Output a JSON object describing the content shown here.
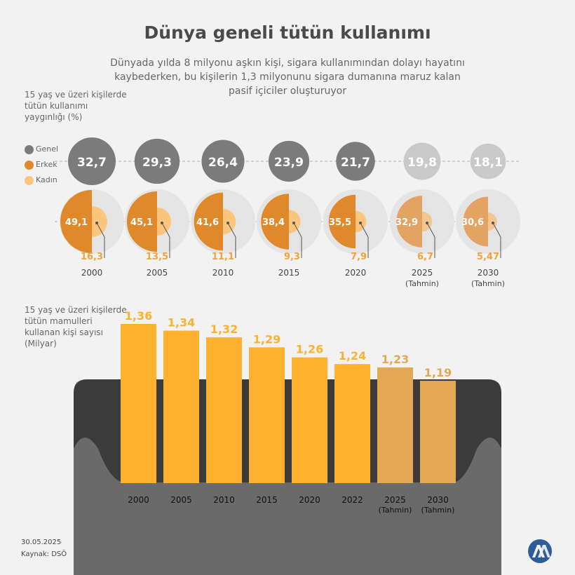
{
  "title": "Dünya geneli tütün kullanımı",
  "subtitle": "Dünyada yılda 8 milyonu aşkın kişi, sigara kullanımından dolayı hayatını kaybederken, bu kişilerin 1,3 milyonunu sigara dumanına maruz kalan pasif içiciler oluşturuyor",
  "footer": {
    "date": "30.05.2025",
    "source": "Kaynak: DSÖ"
  },
  "colors": {
    "genel": "#7b7b7b",
    "genel_forecast": "#c9c9c9",
    "erkek": "#e0892a",
    "erkek_forecast": "#e3a463",
    "kadin": "#fcc57d",
    "kadin_forecast": "#f2c691",
    "bar": "#fdb12f",
    "bar_forecast": "#e2a853",
    "pack_dark": "#3b3b3b",
    "pack_mid": "#6a6a6a",
    "background": "#f2f2f2"
  },
  "chart_data": [
    {
      "type": "bubble",
      "ylabel": "15 yaş ve üzeri kişilerde tütün kullanımı yaygınlığı (%)",
      "legend": [
        "Genel",
        "Erkek",
        "Kadın"
      ],
      "legend_placement": "left",
      "categories": [
        "2000",
        "2005",
        "2010",
        "2015",
        "2020",
        "2025",
        "2030"
      ],
      "category_sub": [
        "",
        "",
        "",
        "",
        "",
        "(Tahmin)",
        "(Tahmin)"
      ],
      "forecast": [
        false,
        false,
        false,
        false,
        false,
        true,
        true
      ],
      "series": [
        {
          "name": "Genel",
          "values": [
            32.7,
            29.3,
            26.4,
            23.9,
            21.7,
            19.8,
            18.1
          ],
          "labels": [
            "32,7",
            "29,3",
            "26,4",
            "23,9",
            "21,7",
            "19,8",
            "18,1"
          ]
        },
        {
          "name": "Erkek",
          "values": [
            49.1,
            45.1,
            41.6,
            38.4,
            35.5,
            32.9,
            30.6
          ],
          "labels": [
            "49,1",
            "45,1",
            "41,6",
            "38,4",
            "35,5",
            "32,9",
            "30,6"
          ]
        },
        {
          "name": "Kadın",
          "values": [
            16.3,
            13.5,
            11.1,
            9.3,
            7.9,
            6.7,
            5.47
          ],
          "labels": [
            "16,3",
            "13,5",
            "11,1",
            "9,3",
            "7,9",
            "6,7",
            "5,47"
          ]
        }
      ]
    },
    {
      "type": "bar",
      "ylabel": "15 yaş ve üzeri kişilerde tütün mamulleri kullanan kişi sayısı (Milyar)",
      "categories": [
        "2000",
        "2005",
        "2010",
        "2015",
        "2020",
        "2022",
        "2025",
        "2030"
      ],
      "category_sub": [
        "",
        "",
        "",
        "",
        "",
        "",
        "(Tahmin)",
        "(Tahmin)"
      ],
      "forecast": [
        false,
        false,
        false,
        false,
        false,
        false,
        true,
        true
      ],
      "values": [
        1.36,
        1.34,
        1.32,
        1.29,
        1.26,
        1.24,
        1.23,
        1.19
      ],
      "labels": [
        "1,36",
        "1,34",
        "1,32",
        "1,29",
        "1,26",
        "1,24",
        "1,23",
        "1,19"
      ],
      "ylim": [
        0,
        1.36
      ]
    }
  ]
}
